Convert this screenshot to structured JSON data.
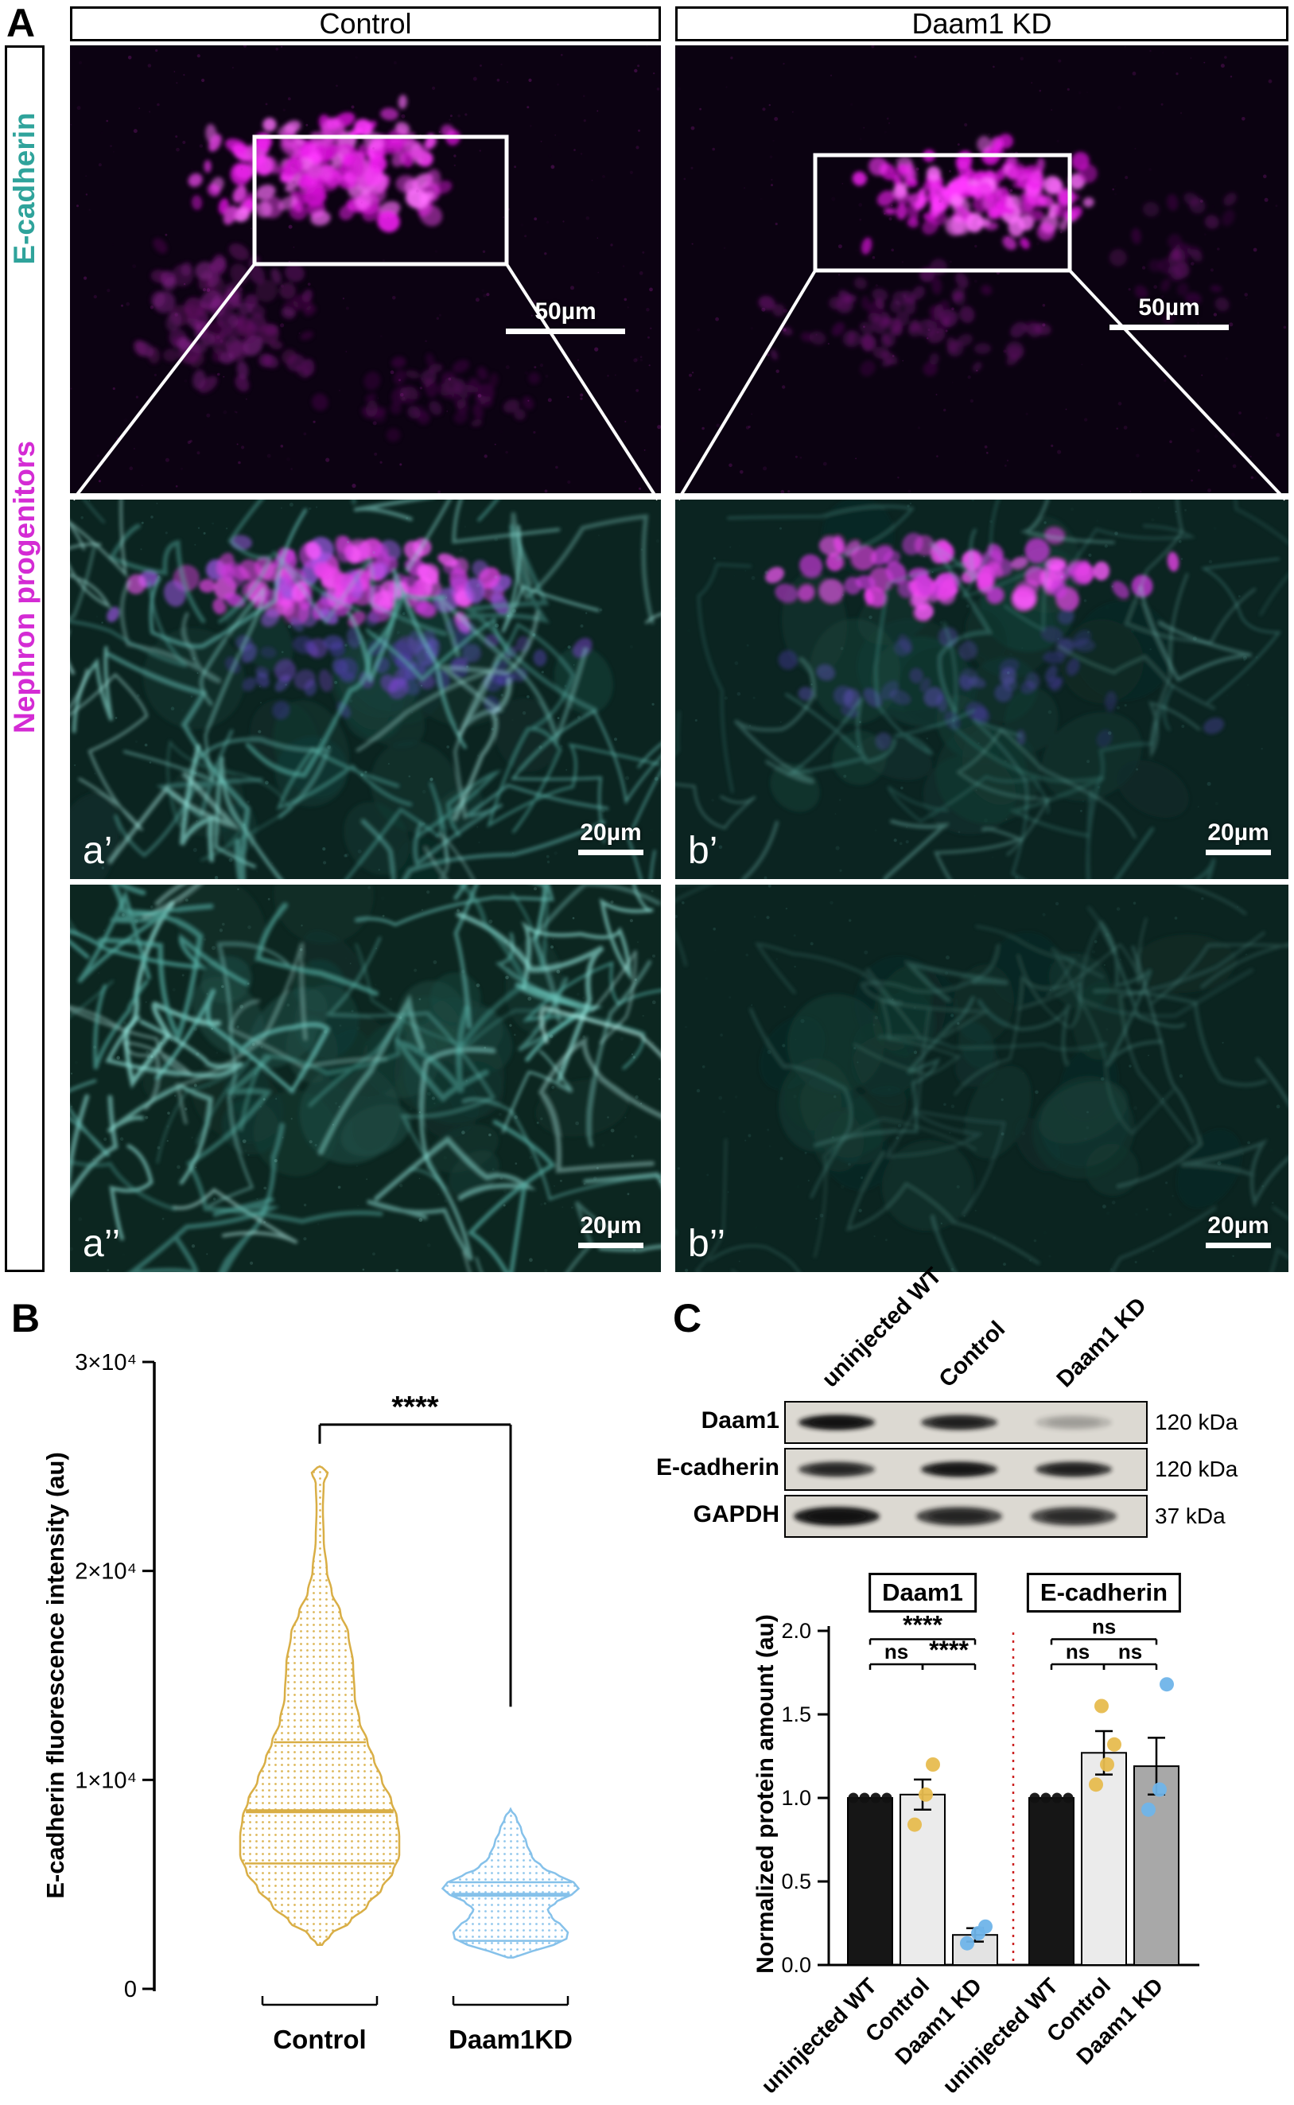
{
  "panel_a": {
    "label": "A",
    "col_headers": [
      "Control",
      "Daam1 KD"
    ],
    "side_labels": [
      {
        "text": "E-cadherin",
        "color": "#2fa39b"
      },
      {
        "text": "Nephron progenitors",
        "color": "#d42bd4"
      }
    ],
    "tiles": [
      {
        "name": "control-overview",
        "scale_bar": "50µm"
      },
      {
        "name": "daam1kd-overview",
        "scale_bar": "50µm"
      },
      {
        "name": "control-merge",
        "letter": "a’",
        "scale_bar": "20µm"
      },
      {
        "name": "daam1kd-merge",
        "letter": "b’",
        "scale_bar": "20µm"
      },
      {
        "name": "control-ecadherin",
        "letter": "a’’",
        "scale_bar": "20µm"
      },
      {
        "name": "daam1kd-ecadherin",
        "letter": "b’’",
        "scale_bar": "20µm"
      }
    ],
    "colors": {
      "nephron_progenitors": "#e42be4",
      "e_cadherin": "#7fd8cf"
    }
  },
  "panel_b": {
    "label": "B"
  },
  "panel_c": {
    "label": "C",
    "group_titles": [
      "Daam1",
      "E-cadherin"
    ],
    "blot": {
      "lane_labels": [
        "uninjected WT",
        "Control",
        "Daam1 KD"
      ],
      "rows": [
        {
          "name": "Daam1",
          "kda": "120 kDa",
          "band_intensities": [
            0.95,
            0.8,
            0.18
          ]
        },
        {
          "name": "E-cadherin",
          "kda": "120 kDa",
          "band_intensities": [
            0.75,
            0.9,
            0.8
          ]
        },
        {
          "name": "GAPDH",
          "kda": "37 kDa",
          "band_intensities": [
            0.95,
            0.75,
            0.7
          ]
        }
      ]
    }
  },
  "chart_data": [
    {
      "id": "ecadherin-fluorescence-violin",
      "type": "violin",
      "ylabel": "E-cadherin fluorescence intensity (au)",
      "ylim": [
        0,
        30000
      ],
      "yticks": [
        {
          "value": 0,
          "label": "0"
        },
        {
          "value": 10000,
          "label": "1×10⁴"
        },
        {
          "value": 20000,
          "label": "2×10⁴"
        },
        {
          "value": 30000,
          "label": "3×10⁴"
        }
      ],
      "groups": [
        {
          "name": "Control",
          "color": "#D9AE45",
          "min": 2100,
          "q1": 6000,
          "median": 8500,
          "q3": 11800,
          "max": 25000,
          "shape": [
            [
              2100,
              0.03
            ],
            [
              2600,
              0.14
            ],
            [
              3200,
              0.38
            ],
            [
              4000,
              0.6
            ],
            [
              4800,
              0.78
            ],
            [
              5600,
              0.92
            ],
            [
              6400,
              1.0
            ],
            [
              7300,
              1.0
            ],
            [
              8200,
              0.97
            ],
            [
              9000,
              0.9
            ],
            [
              10000,
              0.78
            ],
            [
              11000,
              0.68
            ],
            [
              11800,
              0.6
            ],
            [
              12800,
              0.5
            ],
            [
              14000,
              0.44
            ],
            [
              15500,
              0.42
            ],
            [
              17000,
              0.36
            ],
            [
              18000,
              0.26
            ],
            [
              19000,
              0.15
            ],
            [
              20000,
              0.09
            ],
            [
              21500,
              0.05
            ],
            [
              23000,
              0.04
            ],
            [
              24200,
              0.05
            ],
            [
              24700,
              0.1
            ],
            [
              24950,
              0.03
            ],
            [
              25000,
              0.0
            ]
          ]
        },
        {
          "name": "Daam1KD",
          "color": "#85C1EA",
          "min": 1500,
          "q1": 2300,
          "median": 4500,
          "q3": 5100,
          "max": 8600,
          "shape": [
            [
              1500,
              0.04
            ],
            [
              1800,
              0.3
            ],
            [
              2100,
              0.6
            ],
            [
              2400,
              0.78
            ],
            [
              2700,
              0.8
            ],
            [
              3000,
              0.72
            ],
            [
              3400,
              0.58
            ],
            [
              3800,
              0.52
            ],
            [
              4200,
              0.65
            ],
            [
              4500,
              0.85
            ],
            [
              4800,
              0.95
            ],
            [
              5100,
              0.88
            ],
            [
              5400,
              0.68
            ],
            [
              5800,
              0.45
            ],
            [
              6300,
              0.3
            ],
            [
              7000,
              0.22
            ],
            [
              7600,
              0.15
            ],
            [
              8200,
              0.08
            ],
            [
              8600,
              0.0
            ]
          ]
        }
      ],
      "significance": [
        {
          "between": [
            "Control",
            "Daam1KD"
          ],
          "label": "****"
        }
      ]
    },
    {
      "id": "normalized-protein-bars",
      "type": "bar",
      "ylabel": "Normalized protein amount (au)",
      "ylim": [
        0,
        2.0
      ],
      "yticks": [
        0.0,
        0.5,
        1.0,
        1.5,
        2.0
      ],
      "categories": [
        "uninjected WT",
        "Control",
        "Daam1 KD"
      ],
      "separator_color": "#cc2222",
      "groups": [
        {
          "title": "Daam1",
          "values": [
            1.0,
            1.02,
            0.18
          ],
          "errors": [
            0,
            0.09,
            0.04
          ],
          "bar_colors": [
            "#161616",
            "#ebebeb",
            "#e3e3e3"
          ],
          "points": [
            {
              "color": "#111111",
              "values": [
                1.0,
                1.0,
                1.0,
                1.0
              ]
            },
            {
              "color": "#E7BC4F",
              "values": [
                0.84,
                1.02,
                1.2
              ]
            },
            {
              "color": "#6FB4E9",
              "values": [
                0.13,
                0.19,
                0.23
              ]
            }
          ],
          "significance": [
            {
              "pair": [
                0,
                2
              ],
              "label": "****",
              "level": 1.95
            },
            {
              "pair": [
                0,
                1
              ],
              "label": "ns",
              "level": 1.8
            },
            {
              "pair": [
                1,
                2
              ],
              "label": "****",
              "level": 1.8
            }
          ]
        },
        {
          "title": "E-cadherin",
          "values": [
            1.0,
            1.27,
            1.19
          ],
          "errors": [
            0,
            0.13,
            0.17
          ],
          "bar_colors": [
            "#161616",
            "#ebebeb",
            "#a8a8a8"
          ],
          "points": [
            {
              "color": "#111111",
              "values": [
                1.0,
                1.0,
                1.0,
                1.0
              ]
            },
            {
              "color": "#E7BC4F",
              "values": [
                1.08,
                1.2,
                1.32,
                1.55
              ]
            },
            {
              "color": "#6FB4E9",
              "values": [
                0.93,
                1.05,
                1.68
              ]
            }
          ],
          "significance": [
            {
              "pair": [
                0,
                2
              ],
              "label": "ns",
              "level": 1.95
            },
            {
              "pair": [
                0,
                1
              ],
              "label": "ns",
              "level": 1.8
            },
            {
              "pair": [
                1,
                2
              ],
              "label": "ns",
              "level": 1.8
            }
          ]
        }
      ]
    }
  ]
}
